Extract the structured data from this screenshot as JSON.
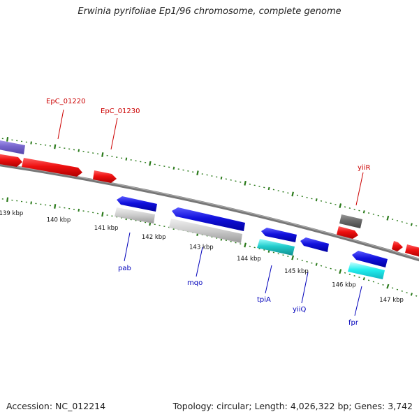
{
  "title": "Erwinia pyrifoliae Ep1/96 chromosome, complete genome",
  "footer": {
    "accession": "Accession: NC_012214",
    "summary": "Topology: circular; Length: 4,026,322 bp; Genes: 3,742"
  },
  "colors": {
    "backbone": "#888888",
    "tick": "#2a7a1a",
    "forward_gene": "#ee1111",
    "reverse_gene": "#1111dd",
    "forward_label": "#cc0000",
    "reverse_label": "#0000bb",
    "rna_cyan": "#22cccc",
    "pseudo_gray": "#c8c8c8",
    "dark_gray": "#666666",
    "purple": "#7766cc"
  },
  "scale": {
    "labels": [
      {
        "kbp": 139,
        "text": "139 kbp"
      },
      {
        "kbp": 140,
        "text": "140 kbp"
      },
      {
        "kbp": 141,
        "text": "141 kbp"
      },
      {
        "kbp": 142,
        "text": "142 kbp"
      },
      {
        "kbp": 143,
        "text": "143 kbp"
      },
      {
        "kbp": 144,
        "text": "144 kbp"
      },
      {
        "kbp": 145,
        "text": "145 kbp"
      },
      {
        "kbp": 146,
        "text": "146 kbp"
      },
      {
        "kbp": 147,
        "text": "147 kbp"
      }
    ]
  },
  "genes": {
    "forward_labels": [
      {
        "text": "EpC_01220"
      },
      {
        "text": "EpC_01230"
      },
      {
        "text": "yiiR"
      }
    ],
    "reverse_labels": [
      {
        "text": "pab"
      },
      {
        "text": "mqo"
      },
      {
        "text": "tpiA"
      },
      {
        "text": "yiiQ"
      },
      {
        "text": "fpr"
      }
    ]
  }
}
